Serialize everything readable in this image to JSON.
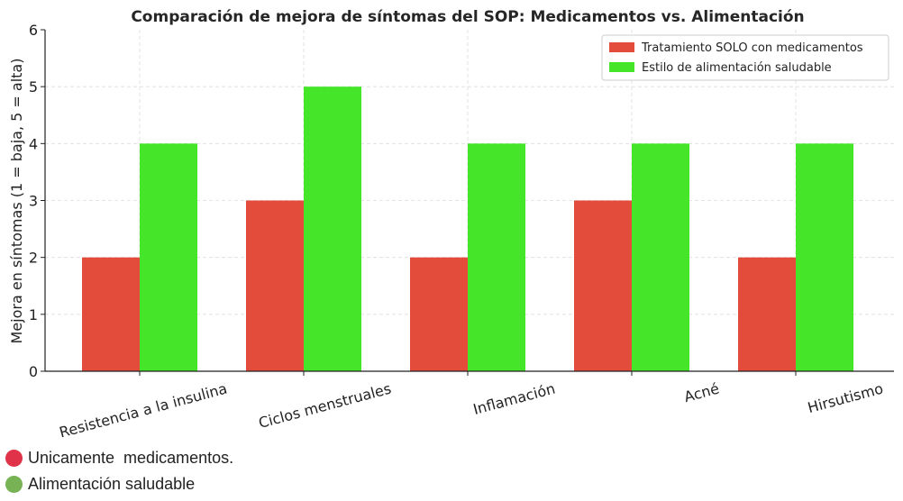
{
  "chart_data": {
    "type": "bar",
    "title": "Comparación de mejora de síntomas del SOP: Medicamentos vs. Alimentación",
    "xlabel": "",
    "ylabel": "Mejora en síntomas (1 = baja, 5 = alta)",
    "ylim": [
      0,
      6
    ],
    "yticks": [
      "0",
      "1",
      "2",
      "3",
      "4",
      "5",
      "6"
    ],
    "grid": true,
    "legend_position": "top-right",
    "categories": [
      "Resistencia a la insulina",
      "Ciclos menstruales",
      "Inflamación",
      "Acné",
      "Hirsutismo"
    ],
    "series": [
      {
        "name": "Tratamiento SOLO con medicamentos",
        "color": "#e34b3b",
        "values": [
          2,
          3,
          2,
          3,
          2
        ]
      },
      {
        "name": "Estilo de alimentación saludable",
        "color": "#45e52a",
        "values": [
          4,
          5,
          4,
          4,
          4
        ]
      }
    ]
  },
  "notes": [
    {
      "text": "Unicamente  medicamentos.",
      "color": "#e0334a"
    },
    {
      "text": "Alimentación saludable",
      "color": "#77b255"
    }
  ]
}
